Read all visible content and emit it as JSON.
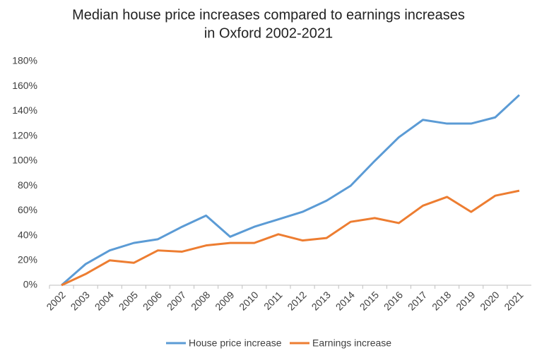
{
  "chart_data": {
    "type": "line",
    "title": [
      "Median house price increases compared to earnings increases",
      "in Oxford 2002-2021"
    ],
    "categories": [
      "2002",
      "2003",
      "2004",
      "2005",
      "2006",
      "2007",
      "2008",
      "2009",
      "2010",
      "2011",
      "2012",
      "2013",
      "2014",
      "2015",
      "2016",
      "2017",
      "2018",
      "2019",
      "2020",
      "2021"
    ],
    "series": [
      {
        "name": "House price increase",
        "color": "#5b9bd5",
        "values": [
          0,
          17,
          28,
          34,
          37,
          47,
          56,
          39,
          47,
          53,
          59,
          68,
          80,
          100,
          119,
          133,
          130,
          130,
          135,
          153
        ]
      },
      {
        "name": "Earnings increase",
        "color": "#ed7d31",
        "values": [
          0,
          9,
          20,
          18,
          28,
          27,
          32,
          34,
          34,
          41,
          36,
          38,
          51,
          54,
          50,
          64,
          71,
          59,
          72,
          76
        ]
      }
    ],
    "ylim": [
      0,
      180
    ],
    "yticks": [
      {
        "value": 0,
        "label": "0%"
      },
      {
        "value": 20,
        "label": "20%"
      },
      {
        "value": 40,
        "label": "40%"
      },
      {
        "value": 60,
        "label": "60%"
      },
      {
        "value": 80,
        "label": "80%"
      },
      {
        "value": 100,
        "label": "100%"
      },
      {
        "value": 120,
        "label": "120%"
      },
      {
        "value": 140,
        "label": "140%"
      },
      {
        "value": 160,
        "label": "160%"
      },
      {
        "value": 180,
        "label": "180%"
      }
    ],
    "grid": false,
    "legend": "bottom"
  }
}
